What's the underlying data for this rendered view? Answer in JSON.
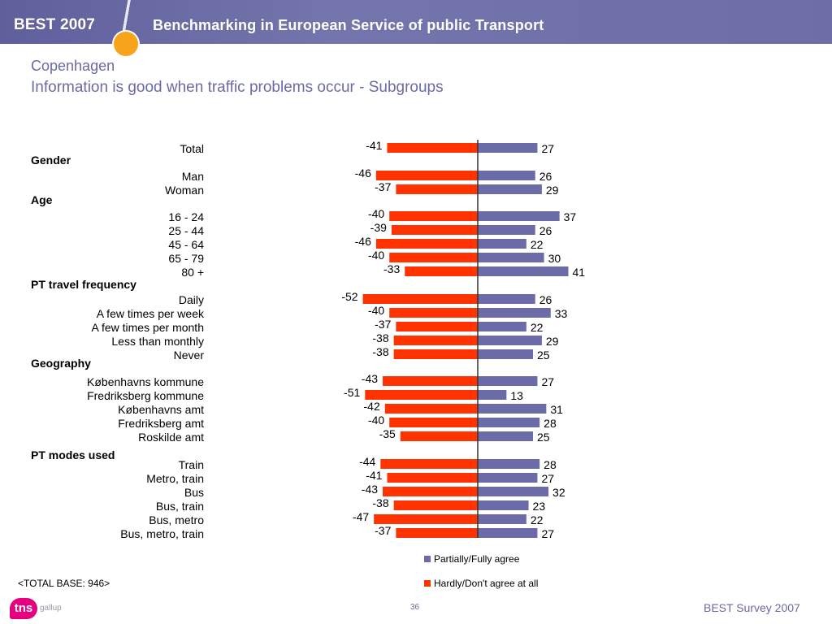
{
  "header": {
    "brand": "BEST 2007",
    "title": "Benchmarking in European Service of public Transport"
  },
  "slide": {
    "title": "Copenhagen",
    "subtitle": "Information is good when traffic problems occur - Subgroups"
  },
  "colors": {
    "agree": "#6b6ba8",
    "disagree": "#ff3300",
    "header": "#6d6da8",
    "accent": "#f7a41b"
  },
  "chart_data": {
    "type": "bar",
    "orientation": "horizontal-diverging",
    "legend_position": "bottom-right",
    "series": [
      {
        "name": "Partially/Fully agree",
        "key": "agree"
      },
      {
        "name": "Hardly/Don't agree at all",
        "key": "disagree"
      }
    ],
    "rows": [
      {
        "kind": "row",
        "label": "Total",
        "neg": -41,
        "pos": 27
      },
      {
        "kind": "group",
        "label": "Gender"
      },
      {
        "kind": "row",
        "label": "Man",
        "neg": -46,
        "pos": 26
      },
      {
        "kind": "row",
        "label": "Woman",
        "neg": -37,
        "pos": 29
      },
      {
        "kind": "group",
        "label": "Age"
      },
      {
        "kind": "row",
        "label": "16 - 24",
        "neg": -40,
        "pos": 37
      },
      {
        "kind": "row",
        "label": "25 - 44",
        "neg": -39,
        "pos": 26
      },
      {
        "kind": "row",
        "label": "45 - 64",
        "neg": -46,
        "pos": 22
      },
      {
        "kind": "row",
        "label": "65 - 79",
        "neg": -40,
        "pos": 30
      },
      {
        "kind": "row",
        "label": "80 +",
        "neg": -33,
        "pos": 41
      },
      {
        "kind": "group",
        "label": "PT travel frequency"
      },
      {
        "kind": "row",
        "label": "Daily",
        "neg": -52,
        "pos": 26
      },
      {
        "kind": "row",
        "label": "A few times per week",
        "neg": -40,
        "pos": 33
      },
      {
        "kind": "row",
        "label": "A few times per month",
        "neg": -37,
        "pos": 22
      },
      {
        "kind": "row",
        "label": "Less than monthly",
        "neg": -38,
        "pos": 29
      },
      {
        "kind": "row",
        "label": "Never",
        "neg": -38,
        "pos": 25
      },
      {
        "kind": "group",
        "label": "Geography"
      },
      {
        "kind": "row",
        "label": "Københavns kommune",
        "neg": -43,
        "pos": 27
      },
      {
        "kind": "row",
        "label": "Fredriksberg kommune",
        "neg": -51,
        "pos": 13
      },
      {
        "kind": "row",
        "label": "Københavns amt",
        "neg": -42,
        "pos": 31
      },
      {
        "kind": "row",
        "label": "Fredriksberg amt",
        "neg": -40,
        "pos": 28
      },
      {
        "kind": "row",
        "label": "Roskilde amt",
        "neg": -35,
        "pos": 25
      },
      {
        "kind": "group",
        "label": "PT modes used"
      },
      {
        "kind": "row",
        "label": "Train",
        "neg": -44,
        "pos": 28
      },
      {
        "kind": "row",
        "label": "Metro, train",
        "neg": -41,
        "pos": 27
      },
      {
        "kind": "row",
        "label": "Bus",
        "neg": -43,
        "pos": 32
      },
      {
        "kind": "row",
        "label": "Bus, train",
        "neg": -38,
        "pos": 23
      },
      {
        "kind": "row",
        "label": "Bus, metro",
        "neg": -47,
        "pos": 22
      },
      {
        "kind": "row",
        "label": "Bus, metro, train",
        "neg": -37,
        "pos": 27
      }
    ]
  },
  "footer": {
    "base": "<TOTAL BASE: 946>",
    "page": "36",
    "survey": "BEST Survey 2007",
    "logo_badge": "tns",
    "logo_text": "gallup"
  }
}
